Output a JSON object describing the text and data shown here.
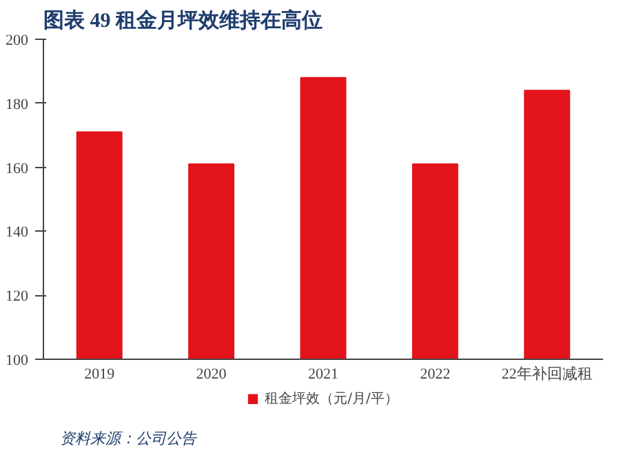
{
  "chart_data": {
    "type": "bar",
    "title": "图表 49 租金月坪效维持在高位",
    "categories": [
      "2019",
      "2020",
      "2021",
      "2022",
      "22年补回减租"
    ],
    "series": [
      {
        "name": "租金坪效（元/月/平）",
        "color": "#e3131b",
        "values": [
          171,
          161,
          188,
          161,
          184
        ]
      }
    ],
    "ylim": [
      100,
      200
    ],
    "yticks": [
      100,
      120,
      140,
      160,
      180,
      200
    ],
    "grid": false,
    "legend": "bottom",
    "annotations": [
      "资料来源：公司公告"
    ]
  }
}
